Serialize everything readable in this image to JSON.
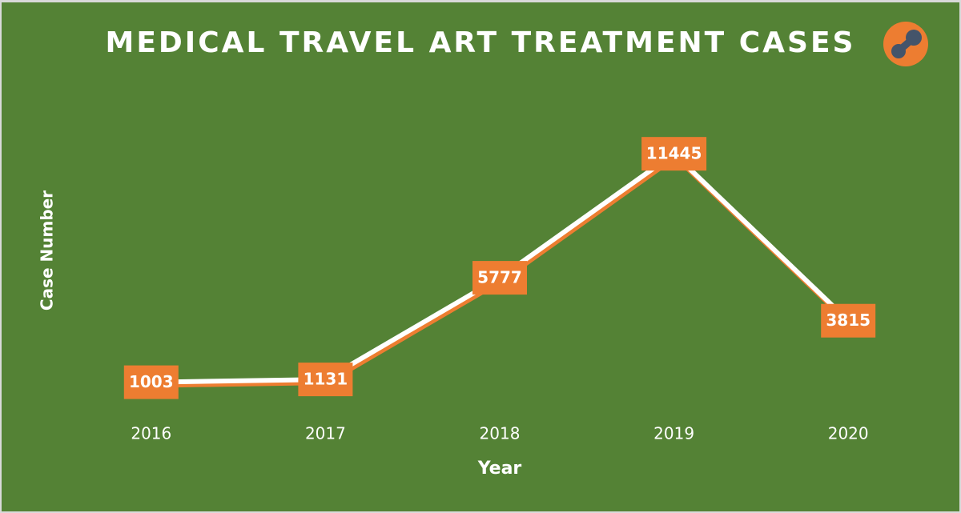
{
  "chart_data": {
    "type": "line",
    "title": "MEDICAL TRAVEL ART TREATMENT CASES",
    "x_label": "Year",
    "y_label": "Case Number",
    "categories": [
      "2016",
      "2017",
      "2018",
      "2019",
      "2020"
    ],
    "values": [
      1003,
      1131,
      5777,
      11445,
      3815
    ],
    "color": "#ffffff",
    "shadow_color": "#ed7d31",
    "label_color": "#ed7d31",
    "background": "#548235",
    "ylim": [
      0,
      12000
    ],
    "drop_lines": true,
    "data_labels": true
  }
}
